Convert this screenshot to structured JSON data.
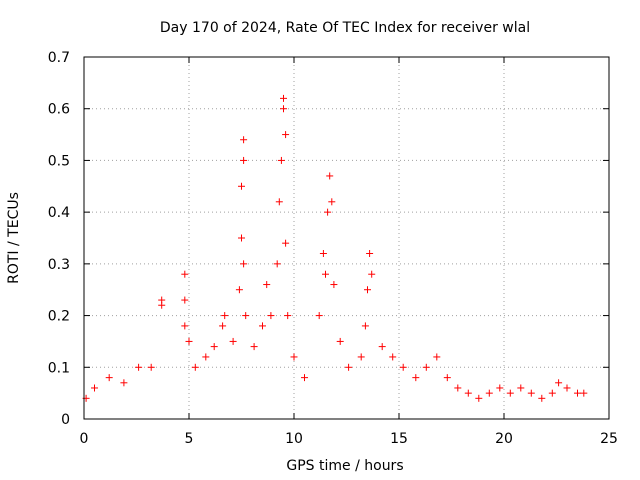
{
  "chart_data": {
    "type": "scatter",
    "title": "Day 170 of 2024, Rate Of TEC Index for receiver wlal",
    "xlabel": "GPS time / hours",
    "ylabel": "ROTI / TECUs",
    "xlim": [
      0,
      25
    ],
    "ylim": [
      0,
      0.7
    ],
    "xticks": [
      0,
      5,
      10,
      15,
      20,
      25
    ],
    "yticks": [
      0,
      0.1,
      0.2,
      0.3,
      0.4,
      0.5,
      0.6,
      0.7
    ],
    "xtick_labels": [
      "0",
      "5",
      "10",
      "15",
      "20",
      "25"
    ],
    "ytick_labels": [
      "0",
      "0.1",
      "0.2",
      "0.3",
      "0.4",
      "0.5",
      "0.6",
      "0.7"
    ],
    "grid": true,
    "marker": "+",
    "color": "#ff0000",
    "series": [
      {
        "name": "ROTI",
        "points": [
          [
            0.1,
            0.04
          ],
          [
            0.5,
            0.06
          ],
          [
            1.2,
            0.08
          ],
          [
            1.9,
            0.07
          ],
          [
            2.6,
            0.1
          ],
          [
            3.2,
            0.1
          ],
          [
            3.7,
            0.22
          ],
          [
            3.7,
            0.23
          ],
          [
            4.8,
            0.28
          ],
          [
            4.8,
            0.23
          ],
          [
            4.8,
            0.18
          ],
          [
            5.0,
            0.15
          ],
          [
            5.3,
            0.1
          ],
          [
            5.8,
            0.12
          ],
          [
            6.2,
            0.14
          ],
          [
            6.6,
            0.18
          ],
          [
            6.7,
            0.2
          ],
          [
            7.1,
            0.15
          ],
          [
            7.4,
            0.25
          ],
          [
            7.5,
            0.35
          ],
          [
            7.5,
            0.45
          ],
          [
            7.6,
            0.54
          ],
          [
            7.6,
            0.5
          ],
          [
            7.6,
            0.3
          ],
          [
            7.7,
            0.2
          ],
          [
            8.1,
            0.14
          ],
          [
            8.5,
            0.18
          ],
          [
            8.7,
            0.26
          ],
          [
            8.9,
            0.2
          ],
          [
            9.2,
            0.3
          ],
          [
            9.3,
            0.42
          ],
          [
            9.4,
            0.5
          ],
          [
            9.5,
            0.62
          ],
          [
            9.5,
            0.6
          ],
          [
            9.6,
            0.55
          ],
          [
            9.6,
            0.34
          ],
          [
            9.7,
            0.2
          ],
          [
            10.0,
            0.12
          ],
          [
            10.5,
            0.08
          ],
          [
            11.2,
            0.2
          ],
          [
            11.4,
            0.32
          ],
          [
            11.5,
            0.28
          ],
          [
            11.6,
            0.4
          ],
          [
            11.7,
            0.47
          ],
          [
            11.8,
            0.42
          ],
          [
            11.9,
            0.26
          ],
          [
            12.2,
            0.15
          ],
          [
            12.6,
            0.1
          ],
          [
            13.2,
            0.12
          ],
          [
            13.4,
            0.18
          ],
          [
            13.5,
            0.25
          ],
          [
            13.6,
            0.32
          ],
          [
            13.7,
            0.28
          ],
          [
            14.2,
            0.14
          ],
          [
            14.7,
            0.12
          ],
          [
            15.2,
            0.1
          ],
          [
            15.8,
            0.08
          ],
          [
            16.3,
            0.1
          ],
          [
            16.8,
            0.12
          ],
          [
            17.3,
            0.08
          ],
          [
            17.8,
            0.06
          ],
          [
            18.3,
            0.05
          ],
          [
            18.8,
            0.04
          ],
          [
            19.3,
            0.05
          ],
          [
            19.8,
            0.06
          ],
          [
            20.3,
            0.05
          ],
          [
            20.8,
            0.06
          ],
          [
            21.3,
            0.05
          ],
          [
            21.8,
            0.04
          ],
          [
            22.3,
            0.05
          ],
          [
            22.6,
            0.07
          ],
          [
            23.0,
            0.06
          ],
          [
            23.5,
            0.05
          ],
          [
            23.8,
            0.05
          ]
        ]
      }
    ]
  }
}
